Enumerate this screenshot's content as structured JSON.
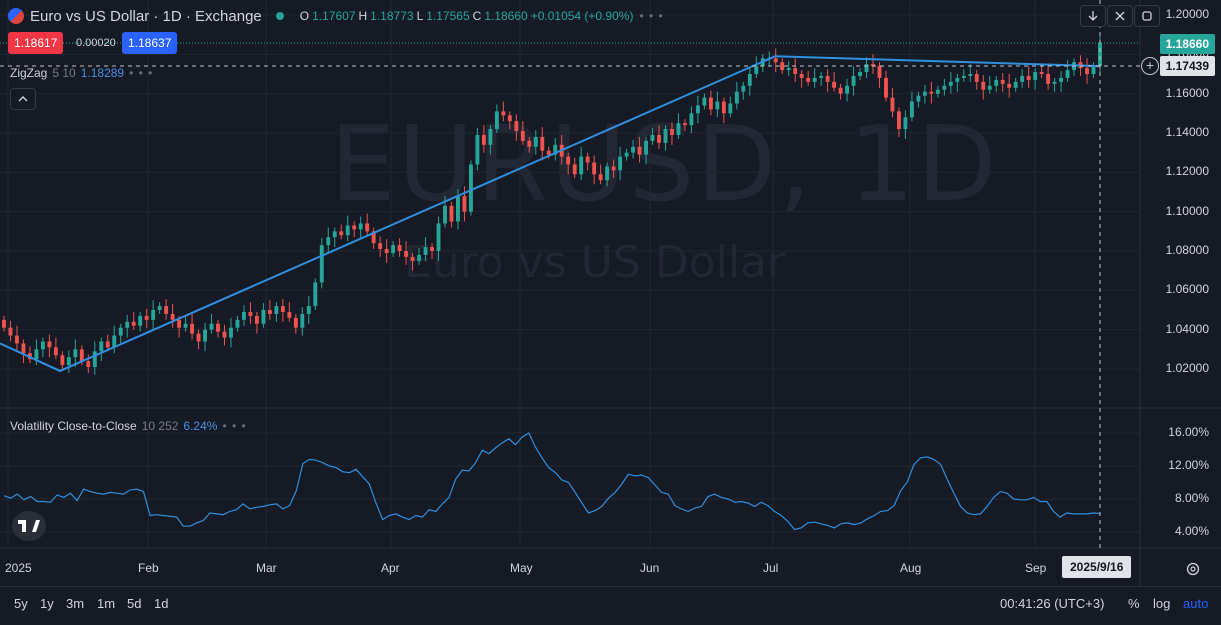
{
  "header": {
    "title": "Euro vs US Dollar · 1D · Exchange",
    "ohlc": {
      "o_label": "O",
      "o": "1.17607",
      "h_label": "H",
      "h": "1.18773",
      "l_label": "L",
      "l": "1.17565",
      "c_label": "C",
      "c": "1.18660",
      "change": "+0.01054 (+0.90%)"
    },
    "more": "• • •"
  },
  "quote": {
    "sell": "1.18617",
    "spread": "0.00020",
    "buy": "1.18637"
  },
  "indicators": {
    "zigzag": {
      "name": "ZigZag",
      "params": "5 10",
      "value": "1.18289",
      "more": "• • •",
      "collapse_icon": "chevron-up-icon"
    },
    "volatility": {
      "name": "Volatility Close-to-Close",
      "params": "10 252",
      "value": "6.24%",
      "more": "• • •"
    }
  },
  "watermark": {
    "symbol": "EURUSD, 1D",
    "name": "Euro vs US Dollar"
  },
  "toolbar": {
    "icons": [
      "arrow-down-icon",
      "collapse-icon",
      "maximize-icon"
    ]
  },
  "price_axis": {
    "ticks": [
      "1.20000",
      "1.18000",
      "1.16000",
      "1.14000",
      "1.12000",
      "1.10000",
      "1.08000",
      "1.06000",
      "1.04000",
      "1.02000"
    ],
    "last_price": "1.18660",
    "crosshair_price": "1.17439",
    "crosshair_icon": "plus-circle-icon"
  },
  "vol_axis": {
    "ticks": [
      "16.00%",
      "12.00%",
      "8.00%",
      "4.00%"
    ]
  },
  "time_axis": {
    "ticks": [
      "2025",
      "Feb",
      "Mar",
      "Apr",
      "May",
      "Jun",
      "Jul",
      "Aug",
      "Sep"
    ],
    "crosshair_date": "2025/9/16",
    "settings_icon": "gear-icon"
  },
  "bottom": {
    "ranges": [
      "5y",
      "1y",
      "3m",
      "1m",
      "5d",
      "1d"
    ],
    "clock": "00:41:26 (UTC+3)",
    "percent": "%",
    "log": "log",
    "auto": "auto"
  },
  "colors": {
    "up": "#26a69a",
    "down": "#ef5350",
    "line": "#2f8fe0",
    "bg": "#161a25",
    "grid": "#222631"
  },
  "chart_data": [
    {
      "type": "candlestick",
      "title": "Euro vs US Dollar · 1D · Exchange",
      "x": [
        "2025-01",
        "2025-02",
        "2025-03",
        "2025-04",
        "2025-05",
        "2025-06",
        "2025-07",
        "2025-08",
        "2025-09"
      ],
      "ylim": [
        1.01,
        1.205
      ],
      "closes": [
        1.041,
        1.037,
        1.033,
        1.028,
        1.025,
        1.03,
        1.034,
        1.031,
        1.027,
        1.022,
        1.026,
        1.03,
        1.024,
        1.021,
        1.029,
        1.034,
        1.031,
        1.037,
        1.041,
        1.044,
        1.042,
        1.047,
        1.045,
        1.05,
        1.052,
        1.048,
        1.045,
        1.041,
        1.043,
        1.038,
        1.034,
        1.04,
        1.043,
        1.039,
        1.036,
        1.041,
        1.045,
        1.049,
        1.047,
        1.043,
        1.05,
        1.048,
        1.052,
        1.049,
        1.046,
        1.041,
        1.048,
        1.052,
        1.064,
        1.083,
        1.087,
        1.09,
        1.088,
        1.093,
        1.091,
        1.094,
        1.09,
        1.084,
        1.081,
        1.079,
        1.083,
        1.08,
        1.077,
        1.075,
        1.078,
        1.082,
        1.08,
        1.094,
        1.103,
        1.095,
        1.108,
        1.1,
        1.124,
        1.139,
        1.134,
        1.142,
        1.151,
        1.149,
        1.146,
        1.141,
        1.136,
        1.133,
        1.138,
        1.131,
        1.129,
        1.134,
        1.128,
        1.124,
        1.119,
        1.128,
        1.125,
        1.119,
        1.116,
        1.123,
        1.121,
        1.128,
        1.13,
        1.133,
        1.129,
        1.136,
        1.139,
        1.135,
        1.142,
        1.139,
        1.145,
        1.144,
        1.15,
        1.154,
        1.158,
        1.152,
        1.156,
        1.15,
        1.155,
        1.161,
        1.164,
        1.17,
        1.174,
        1.178,
        1.178,
        1.176,
        1.172,
        1.173,
        1.17,
        1.168,
        1.166,
        1.168,
        1.169,
        1.166,
        1.163,
        1.16,
        1.164,
        1.169,
        1.171,
        1.175,
        1.174,
        1.168,
        1.158,
        1.151,
        1.142,
        1.148,
        1.156,
        1.159,
        1.161,
        1.16,
        1.162,
        1.164,
        1.166,
        1.168,
        1.169,
        1.17,
        1.166,
        1.162,
        1.164,
        1.167,
        1.165,
        1.163,
        1.166,
        1.169,
        1.167,
        1.171,
        1.17,
        1.165,
        1.166,
        1.168,
        1.172,
        1.176,
        1.173,
        1.17,
        1.174,
        1.186
      ],
      "zigzag": [
        [
          0,
          1.033
        ],
        [
          10,
          1.019
        ],
        [
          93,
          1.179
        ],
        [
          112,
          1.174
        ]
      ],
      "last_price": 1.1866
    },
    {
      "type": "line",
      "name": "Volatility Close-to-Close",
      "ylim": [
        0.02,
        0.18
      ],
      "values": [
        0.084,
        0.081,
        0.086,
        0.079,
        0.083,
        0.077,
        0.077,
        0.076,
        0.085,
        0.082,
        0.087,
        0.078,
        0.092,
        0.089,
        0.087,
        0.086,
        0.088,
        0.087,
        0.086,
        0.091,
        0.092,
        0.089,
        0.06,
        0.061,
        0.06,
        0.059,
        0.058,
        0.047,
        0.047,
        0.051,
        0.054,
        0.063,
        0.062,
        0.061,
        0.065,
        0.067,
        0.074,
        0.068,
        0.07,
        0.071,
        0.073,
        0.074,
        0.068,
        0.072,
        0.09,
        0.123,
        0.128,
        0.127,
        0.124,
        0.12,
        0.118,
        0.113,
        0.112,
        0.116,
        0.107,
        0.098,
        0.075,
        0.055,
        0.06,
        0.062,
        0.058,
        0.055,
        0.06,
        0.058,
        0.067,
        0.065,
        0.074,
        0.082,
        0.104,
        0.115,
        0.114,
        0.124,
        0.139,
        0.135,
        0.142,
        0.148,
        0.153,
        0.146,
        0.155,
        0.16,
        0.143,
        0.13,
        0.118,
        0.112,
        0.103,
        0.1,
        0.088,
        0.075,
        0.063,
        0.066,
        0.071,
        0.081,
        0.088,
        0.098,
        0.11,
        0.108,
        0.109,
        0.106,
        0.097,
        0.088,
        0.086,
        0.072,
        0.068,
        0.065,
        0.069,
        0.071,
        0.083,
        0.086,
        0.082,
        0.08,
        0.076,
        0.077,
        0.075,
        0.071,
        0.076,
        0.072,
        0.065,
        0.06,
        0.053,
        0.043,
        0.045,
        0.051,
        0.052,
        0.05,
        0.048,
        0.045,
        0.05,
        0.051,
        0.049,
        0.051,
        0.056,
        0.06,
        0.065,
        0.066,
        0.072,
        0.09,
        0.101,
        0.122,
        0.13,
        0.131,
        0.128,
        0.122,
        0.104,
        0.087,
        0.071,
        0.063,
        0.061,
        0.062,
        0.071,
        0.082,
        0.089,
        0.087,
        0.08,
        0.079,
        0.079,
        0.082,
        0.077,
        0.077,
        0.065,
        0.058,
        0.063,
        0.062,
        0.062,
        0.062,
        0.063,
        0.0624
      ]
    }
  ]
}
